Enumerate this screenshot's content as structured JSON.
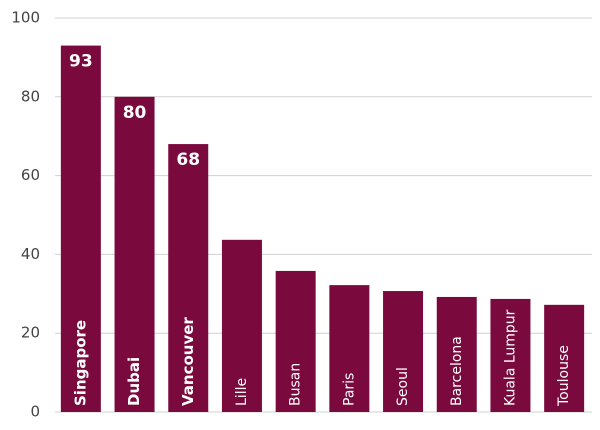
{
  "chart_data": {
    "type": "bar",
    "categories": [
      "Singapore",
      "Dubai",
      "Vancouver",
      "Lille",
      "Busan",
      "Paris",
      "Seoul",
      "Barcelona",
      "Kuala Lumpur",
      "Toulouse"
    ],
    "values": [
      93,
      80,
      68,
      43.7,
      35.8,
      32.2,
      30.7,
      29.2,
      28.7,
      27.2
    ],
    "value_labels": [
      "93",
      "80",
      "68",
      null,
      null,
      null,
      null,
      null,
      null,
      null
    ],
    "color": "#7a0a3e",
    "ylim": [
      0,
      100
    ],
    "yticks": [
      0,
      20,
      40,
      60,
      80,
      100
    ],
    "grid": true
  }
}
